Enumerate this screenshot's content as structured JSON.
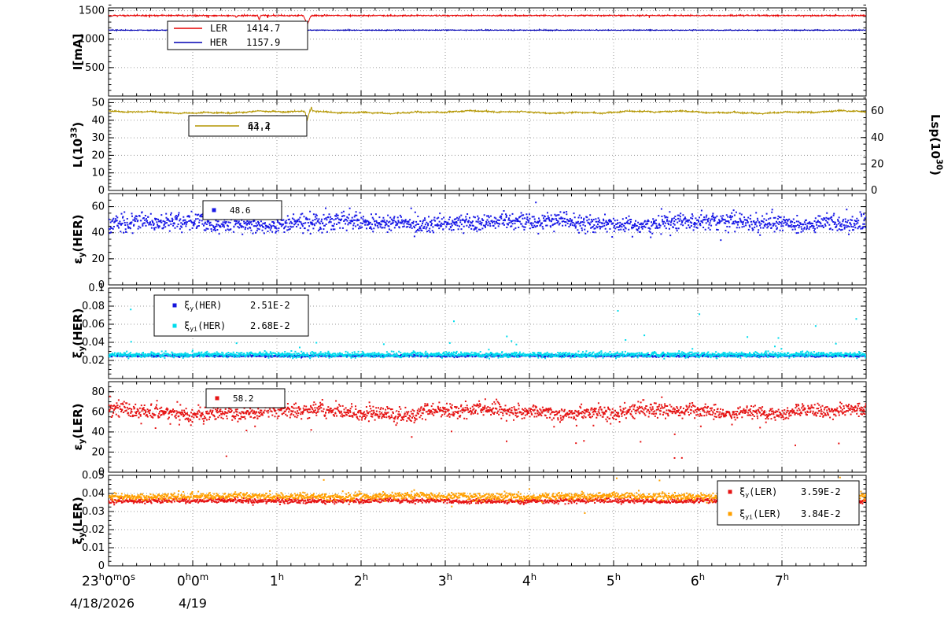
{
  "figure": {
    "bg": "#ffffff",
    "frame_color": "#000000",
    "grid_color": "#9a9a9a"
  },
  "x_axis": {
    "range_hours": [
      0,
      9
    ],
    "ticks": [
      {
        "t": 0,
        "label": "23h0m0s"
      },
      {
        "t": 1,
        "label": "0h0m"
      },
      {
        "t": 2,
        "label": "1h"
      },
      {
        "t": 3,
        "label": "2h"
      },
      {
        "t": 4,
        "label": "3h"
      },
      {
        "t": 5,
        "label": "4h"
      },
      {
        "t": 6,
        "label": "5h"
      },
      {
        "t": 7,
        "label": "6h"
      },
      {
        "t": 8,
        "label": "7h"
      }
    ],
    "dates": [
      {
        "t": 0,
        "label": "4/18/2026"
      },
      {
        "t": 1,
        "label": "4/19"
      }
    ]
  },
  "chart_data": [
    {
      "id": "beam-current",
      "type": "line",
      "ylabel": "I[mA]",
      "ylim": [
        0,
        1550
      ],
      "yticks": [
        [
          500,
          "500"
        ],
        [
          1000,
          "1000"
        ],
        [
          1500,
          "1500"
        ]
      ],
      "yminor": 100,
      "series": [
        {
          "name": "LER",
          "color": "#e60000",
          "mean": 1414.7,
          "noise": 12,
          "downspikes": 0.003,
          "dips": [
            {
              "t": 1.52,
              "depth": 35,
              "width": 0.015
            },
            {
              "t": 1.79,
              "depth": 70,
              "width": 0.02
            },
            {
              "t": 2.36,
              "depth": 165,
              "width": 0.045
            }
          ]
        },
        {
          "name": "HER",
          "color": "#0000b4",
          "mean": 1157.9,
          "noise": 8
        }
      ],
      "legend": {
        "style": "line",
        "entries": [
          {
            "label": "LER",
            "value": "1414.7",
            "color": "#e60000"
          },
          {
            "label": "HER",
            "value": "1157.9",
            "color": "#0000b4"
          }
        ]
      }
    },
    {
      "id": "luminosity",
      "type": "line",
      "ylabel": "L(10^33)",
      "ylim": [
        0,
        52
      ],
      "yticks": [
        [
          0,
          "0"
        ],
        [
          10,
          "10"
        ],
        [
          20,
          "20"
        ],
        [
          30,
          "30"
        ],
        [
          40,
          "40"
        ],
        [
          50,
          "50"
        ]
      ],
      "yminor": 2,
      "right_axis": {
        "label": "Lsp(10^30)",
        "ylim": [
          0,
          69
        ],
        "yticks": [
          [
            0,
            "0"
          ],
          [
            20,
            "20"
          ],
          [
            40,
            "40"
          ],
          [
            60,
            "60"
          ]
        ],
        "yminor": 5
      },
      "series": [
        {
          "name": "L",
          "color": "#b49600",
          "mean": 44.6,
          "noise": 0.4,
          "wobble": 0.9,
          "dips": [
            {
              "t": 2.36,
              "depth": 5.5,
              "width": 0.03
            },
            {
              "t": 2.41,
              "depth": -2.5,
              "width": 0.012
            }
          ]
        }
      ],
      "legend": {
        "style": "line",
        "entries": [
          {
            "label": "",
            "value": "63.2",
            "color": "#b49600"
          },
          {
            "label": "",
            "value": "44.4",
            "color": "#b49600",
            "overlap": true
          }
        ]
      }
    },
    {
      "id": "emittance-her",
      "type": "scatter",
      "ylabel": "ε_y(HER)",
      "ylim": [
        0,
        70
      ],
      "yticks": [
        [
          0,
          "0"
        ],
        [
          20,
          "20"
        ],
        [
          40,
          "40"
        ],
        [
          60,
          "60"
        ]
      ],
      "yminor": 5,
      "series": [
        {
          "name": "ε_y(HER)",
          "color": "#1919e6",
          "mean": 47.5,
          "spread": 3.4,
          "wobble": 2.6,
          "n": 1800,
          "clamp": [
            33,
            64
          ]
        }
      ],
      "legend": {
        "style": "marker-small",
        "entries": [
          {
            "label": "",
            "value": "48.6",
            "color": "#1919e6"
          }
        ]
      }
    },
    {
      "id": "xi-her",
      "type": "scatter",
      "ylabel": "ξ_y(HER)",
      "ylim": [
        0,
        0.1
      ],
      "yticks": [
        [
          0.02,
          "0.02"
        ],
        [
          0.04,
          "0.04"
        ],
        [
          0.06,
          "0.06"
        ],
        [
          0.08,
          "0.08"
        ],
        [
          0.1,
          "0.1"
        ]
      ],
      "yminor": 0.005,
      "series": [
        {
          "name": "ξ_y(HER)",
          "color": "#1414dc",
          "mean": 0.0251,
          "spread": 0.0006,
          "wobble": 0.0002,
          "n": 1500,
          "clamp": [
            0.022,
            0.03
          ]
        },
        {
          "name": "ξ_yi(HER)",
          "color": "#00dcec",
          "mean": 0.0264,
          "spread": 0.0015,
          "wobble": 0.0004,
          "n": 1600,
          "clamp": [
            0.021,
            0.034
          ],
          "outliers": {
            "n": 26,
            "lo": 0.032,
            "hi": 0.095,
            "bias": "low"
          }
        }
      ],
      "legend": {
        "style": "marker",
        "entries": [
          {
            "label": "ξ_y(HER)",
            "value": "2.51E-2",
            "color": "#1414dc"
          },
          {
            "label": "ξ_yi(HER)",
            "value": "2.68E-2",
            "color": "#00dcec"
          }
        ]
      }
    },
    {
      "id": "emittance-ler",
      "type": "scatter",
      "ylabel": "ε_y(LER)",
      "ylim": [
        0,
        90
      ],
      "yticks": [
        [
          0,
          "0"
        ],
        [
          20,
          "20"
        ],
        [
          40,
          "40"
        ],
        [
          60,
          "60"
        ],
        [
          80,
          "80"
        ]
      ],
      "yminor": 5,
      "series": [
        {
          "name": "ε_y(LER)",
          "color": "#e61414",
          "mean": 60,
          "spread": 3.6,
          "wobble": 4.2,
          "n": 1800,
          "clamp": [
            38,
            82
          ],
          "outliers": {
            "n": 22,
            "lo": 8,
            "hi": 48,
            "bias": "high"
          }
        }
      ],
      "legend": {
        "style": "marker-small",
        "entries": [
          {
            "label": "",
            "value": "58.2",
            "color": "#e61414"
          }
        ]
      }
    },
    {
      "id": "xi-ler",
      "type": "scatter",
      "ylabel": "ξ_y(LER)",
      "ylim": [
        0,
        0.05
      ],
      "yticks": [
        [
          0,
          "0"
        ],
        [
          0.01,
          "0.01"
        ],
        [
          0.02,
          "0.02"
        ],
        [
          0.03,
          "0.03"
        ],
        [
          0.04,
          "0.04"
        ],
        [
          0.05,
          "0.05"
        ]
      ],
      "yminor": 0.0025,
      "series": [
        {
          "name": "ξ_y(LER)",
          "color": "#e61414",
          "mean": 0.0359,
          "spread": 0.0007,
          "wobble": 0.0004,
          "n": 1500,
          "clamp": [
            0.032,
            0.04
          ]
        },
        {
          "name": "ξ_yi(LER)",
          "color": "#ffa000",
          "mean": 0.0384,
          "spread": 0.001,
          "wobble": 0.0005,
          "n": 1600,
          "clamp": [
            0.03,
            0.044
          ],
          "outliers": {
            "n": 14,
            "lo": 0.028,
            "hi": 0.049
          }
        }
      ],
      "legend": {
        "style": "marker",
        "entries": [
          {
            "label": "ξ_y(LER)",
            "value": "3.59E-2",
            "color": "#e61414"
          },
          {
            "label": "ξ_yi(LER)",
            "value": "3.84E-2",
            "color": "#ffa000"
          }
        ]
      }
    }
  ]
}
